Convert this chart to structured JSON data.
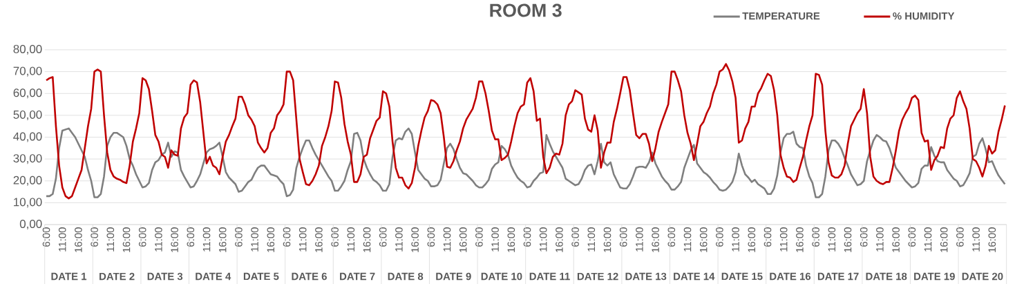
{
  "chart_data": {
    "type": "line",
    "title": "ROOM 3",
    "categories": [
      "6:00",
      null,
      null,
      null,
      null,
      "11:00",
      null,
      null,
      null,
      null,
      "16:00",
      null,
      null,
      null,
      null,
      "6:00",
      null,
      null,
      null,
      null,
      "11:00",
      null,
      null,
      null,
      null,
      "16:00",
      null,
      null,
      null,
      null,
      "6:00",
      null,
      null,
      null,
      null,
      "11:00",
      null,
      null,
      null,
      null,
      "16:00",
      null,
      null,
      null,
      null,
      "6:00",
      null,
      null,
      null,
      null,
      "11:00",
      null,
      null,
      null,
      null,
      "16:00",
      null,
      null,
      null,
      null,
      "6:00",
      null,
      null,
      null,
      null,
      "11:00",
      null,
      null,
      null,
      null,
      "16:00",
      null,
      null,
      null,
      null,
      "6:00",
      null,
      null,
      null,
      null,
      "11:00",
      null,
      null,
      null,
      null,
      "16:00",
      null,
      null,
      null,
      null,
      "6:00",
      null,
      null,
      null,
      null,
      "11:00",
      null,
      null,
      null,
      null,
      "16:00",
      null,
      null,
      null,
      null,
      "6:00",
      null,
      null,
      null,
      null,
      "11:00",
      null,
      null,
      null,
      null,
      "16:00",
      null,
      null,
      null,
      null,
      "6:00",
      null,
      null,
      null,
      null,
      "11:00",
      null,
      null,
      null,
      null,
      "16:00",
      null,
      null,
      null,
      null,
      "6:00",
      null,
      null,
      null,
      null,
      "11:00",
      null,
      null,
      null,
      null,
      "16:00",
      null,
      null,
      null,
      null,
      "6:00",
      null,
      null,
      null,
      null,
      "11:00",
      null,
      null,
      null,
      null,
      "16:00",
      null,
      null,
      null,
      null,
      "6:00",
      null,
      null,
      null,
      null,
      "11:00",
      null,
      null,
      null,
      null,
      "16:00",
      null,
      null,
      null,
      null,
      "6:00",
      null,
      null,
      null,
      null,
      "11:00",
      null,
      null,
      null,
      null,
      "16:00",
      null,
      null,
      null,
      null,
      "6:00",
      null,
      null,
      null,
      null,
      "11:00",
      null,
      null,
      null,
      null,
      "16:00",
      null,
      null,
      null,
      null,
      "6:00",
      null,
      null,
      null,
      null,
      "11:00",
      null,
      null,
      null,
      null,
      "16:00",
      null,
      null,
      null,
      null,
      "6:00",
      null,
      null,
      null,
      null,
      "11:00",
      null,
      null,
      null,
      null,
      "16:00",
      null,
      null,
      null,
      null,
      "6:00",
      null,
      null,
      null,
      null,
      "11:00",
      null,
      null,
      null,
      null,
      "16:00",
      null,
      null,
      null,
      null,
      "6:00",
      null,
      null,
      null,
      null,
      "11:00",
      null,
      null,
      null,
      null,
      "16:00",
      null,
      null,
      null,
      null,
      "6:00",
      null,
      null,
      null,
      null,
      "11:00",
      null,
      null,
      null,
      null,
      "16:00",
      null,
      null,
      null,
      null,
      "6:00",
      null,
      null,
      null,
      null,
      "11:00",
      null,
      null,
      null,
      null,
      "16:00",
      null,
      null,
      null,
      null
    ],
    "ylim": [
      0,
      80
    ],
    "yticks": [
      {
        "value": 0,
        "label": "0,00"
      },
      {
        "value": 10,
        "label": "10,00"
      },
      {
        "value": 20,
        "label": "20,00"
      },
      {
        "value": 30,
        "label": "30,00"
      },
      {
        "value": 40,
        "label": "40,00"
      },
      {
        "value": 50,
        "label": "50,00"
      },
      {
        "value": 60,
        "label": "60,00"
      },
      {
        "value": 70,
        "label": "70,00"
      },
      {
        "value": 80,
        "label": "80,00"
      }
    ],
    "grid": "y",
    "legend": "top right",
    "annotations": [
      "DATE 1",
      "DATE 2",
      "DATE 3",
      "DATE 4",
      "DATE 5",
      "DATE 6",
      "DATE 7",
      "DATE 8",
      "DATE 9",
      "DATE 10",
      "DATE 11",
      "DATE 12",
      "DATE 13",
      "DATE 14",
      "DATE 15",
      "DATE 16",
      "DATE 17",
      "DATE 18",
      "DATE 19",
      "DATE 20"
    ],
    "series": [
      {
        "name": "TEMPERATURE",
        "color": "#7f7f7f",
        "values": [
          13,
          13,
          14,
          21,
          35,
          43,
          43.5,
          44,
          42,
          40,
          37,
          34,
          31,
          25,
          20,
          12.5,
          12.5,
          14,
          22,
          36,
          40,
          42,
          42,
          41,
          40,
          36,
          30,
          27,
          23,
          20,
          17,
          17.5,
          19,
          25,
          28.5,
          29.5,
          32,
          33,
          37.5,
          31,
          33.5,
          33,
          25,
          22,
          19.5,
          17,
          17.5,
          20,
          23,
          28,
          33,
          34.5,
          35,
          36,
          37.5,
          31,
          24,
          21.5,
          20,
          18.5,
          15,
          15.5,
          17.5,
          19.5,
          20.5,
          23.5,
          26,
          27,
          27,
          25,
          23,
          22.5,
          22,
          20,
          18.5,
          13,
          13.5,
          16,
          26,
          31,
          35,
          38.5,
          38.5,
          35,
          32,
          29.5,
          27,
          24.5,
          22,
          20,
          15.5,
          15.5,
          17.5,
          20,
          25,
          29,
          41.5,
          42,
          38.5,
          30,
          26,
          23,
          20.5,
          19.5,
          18,
          15.5,
          15.5,
          18.5,
          31,
          38.5,
          39.5,
          39,
          42.5,
          44,
          41.5,
          33,
          25,
          23,
          21,
          20,
          17.5,
          17.5,
          18,
          20.5,
          28,
          35,
          37,
          34.5,
          30,
          26,
          23.5,
          23,
          21.5,
          20,
          18,
          17,
          17,
          18.5,
          20.5,
          25.5,
          27.5,
          28.5,
          36,
          34.5,
          32,
          27,
          24,
          21.5,
          20,
          19,
          17,
          17.5,
          20,
          21.5,
          23.5,
          24,
          41,
          37,
          33.5,
          31,
          28.5,
          26,
          21,
          20,
          19,
          18,
          18.5,
          21,
          25,
          27,
          27.5,
          23,
          29,
          37,
          28.5,
          27,
          28.5,
          23,
          20,
          17,
          16.5,
          16.5,
          18.5,
          22,
          26,
          26.5,
          26.5,
          26,
          28.5,
          33,
          28,
          25,
          22,
          20,
          18.5,
          16,
          16,
          17.5,
          19.5,
          26,
          30,
          34,
          36.5,
          28,
          26,
          24,
          23,
          21.5,
          19.5,
          18,
          16,
          15.5,
          16,
          17.5,
          19.5,
          24,
          32.5,
          27,
          23,
          21.5,
          19.5,
          20.5,
          18.5,
          17.5,
          16.5,
          14,
          14,
          16.5,
          22.5,
          33,
          39.5,
          41.5,
          41.5,
          42.5,
          37,
          35.5,
          35,
          27,
          22,
          19,
          12.5,
          12.5,
          14,
          22,
          34,
          38.5,
          38.5,
          37,
          34.5,
          30.5,
          27,
          23,
          20.5,
          18,
          18.5,
          20,
          29,
          34,
          38.5,
          41,
          40,
          38.5,
          38,
          35,
          30.5,
          26,
          24,
          22,
          20,
          18.5,
          17,
          17.5,
          19,
          25.5,
          27,
          27,
          35.5,
          31.5,
          29,
          28.5,
          28.5,
          25,
          23,
          21,
          20,
          17.5,
          18,
          20.5,
          23.5,
          31,
          32,
          37,
          39.5,
          34.5,
          28.5,
          29,
          25.5,
          22.5,
          20.5,
          18.5
        ]
      },
      {
        "name": "% HUMIDITY",
        "color": "#c00000",
        "values": [
          66,
          67,
          67.5,
          45,
          27,
          17,
          13,
          12,
          13,
          17,
          21,
          25,
          35,
          45,
          53,
          70,
          71,
          70,
          50,
          33,
          25,
          22,
          21,
          20.5,
          19.5,
          19,
          27,
          38,
          44,
          51,
          67,
          66,
          62,
          52,
          41,
          38,
          32,
          31,
          26,
          34,
          32,
          31.5,
          44,
          49,
          51,
          64,
          66,
          65,
          56,
          42,
          28,
          31,
          27,
          26,
          23,
          31,
          38,
          41,
          45,
          48.5,
          58.5,
          58.5,
          55,
          50,
          48,
          45,
          37.5,
          35,
          33,
          35,
          42,
          44,
          50,
          52,
          55,
          70,
          70,
          66,
          48,
          30,
          24,
          18.5,
          18,
          20,
          23,
          27,
          36,
          40,
          45,
          52,
          65.5,
          65,
          58,
          46,
          38,
          32,
          19.5,
          19.5,
          23,
          31,
          32,
          39.5,
          43.5,
          47.5,
          49,
          61,
          60,
          54,
          38,
          26,
          21.5,
          21.5,
          18,
          16.5,
          19,
          26,
          36,
          43,
          49,
          52,
          57,
          56.5,
          55,
          51,
          40,
          26.5,
          26,
          29,
          34,
          38,
          44,
          48,
          50.5,
          53,
          58,
          65.5,
          65.5,
          60,
          52,
          43,
          39,
          39,
          29.5,
          30.5,
          32,
          38,
          45,
          51,
          54,
          55,
          65,
          67,
          61,
          47.5,
          48.5,
          31,
          23.5,
          26,
          31,
          32.5,
          32,
          37,
          50,
          55,
          56.5,
          61.5,
          60.5,
          59.5,
          48.5,
          43.5,
          42.5,
          50,
          43,
          26,
          33,
          37.5,
          37.5,
          47,
          53,
          60,
          67.5,
          67.5,
          61.5,
          51,
          41,
          39.5,
          41.5,
          41.5,
          37,
          29,
          35,
          42.5,
          47,
          51,
          55,
          70,
          70,
          66,
          61,
          50,
          42,
          37,
          29.5,
          37,
          45,
          47,
          51,
          54,
          60,
          64,
          70,
          71,
          73.5,
          70.5,
          65.5,
          58,
          37.5,
          38.5,
          44,
          47,
          54,
          54,
          60,
          62.5,
          66,
          69,
          68,
          61.5,
          50,
          32,
          26,
          22,
          21.5,
          19.5,
          20.5,
          26,
          31,
          38.5,
          45,
          50,
          69,
          68.5,
          64,
          43,
          28.5,
          22.5,
          21.5,
          21.5,
          23,
          27,
          37,
          45,
          48,
          51,
          53,
          62,
          51,
          31,
          22,
          20,
          19,
          18.5,
          19.5,
          19.5,
          26,
          34,
          43,
          48,
          51,
          53.5,
          58,
          59,
          57,
          42,
          38,
          38.5,
          25,
          29.5,
          31.5,
          35.5,
          35,
          44,
          48.5,
          50,
          58,
          61,
          56.5,
          53,
          44,
          30,
          29,
          26,
          22,
          27,
          36,
          32.5,
          34,
          42.5,
          48,
          54.5
        ]
      }
    ]
  }
}
